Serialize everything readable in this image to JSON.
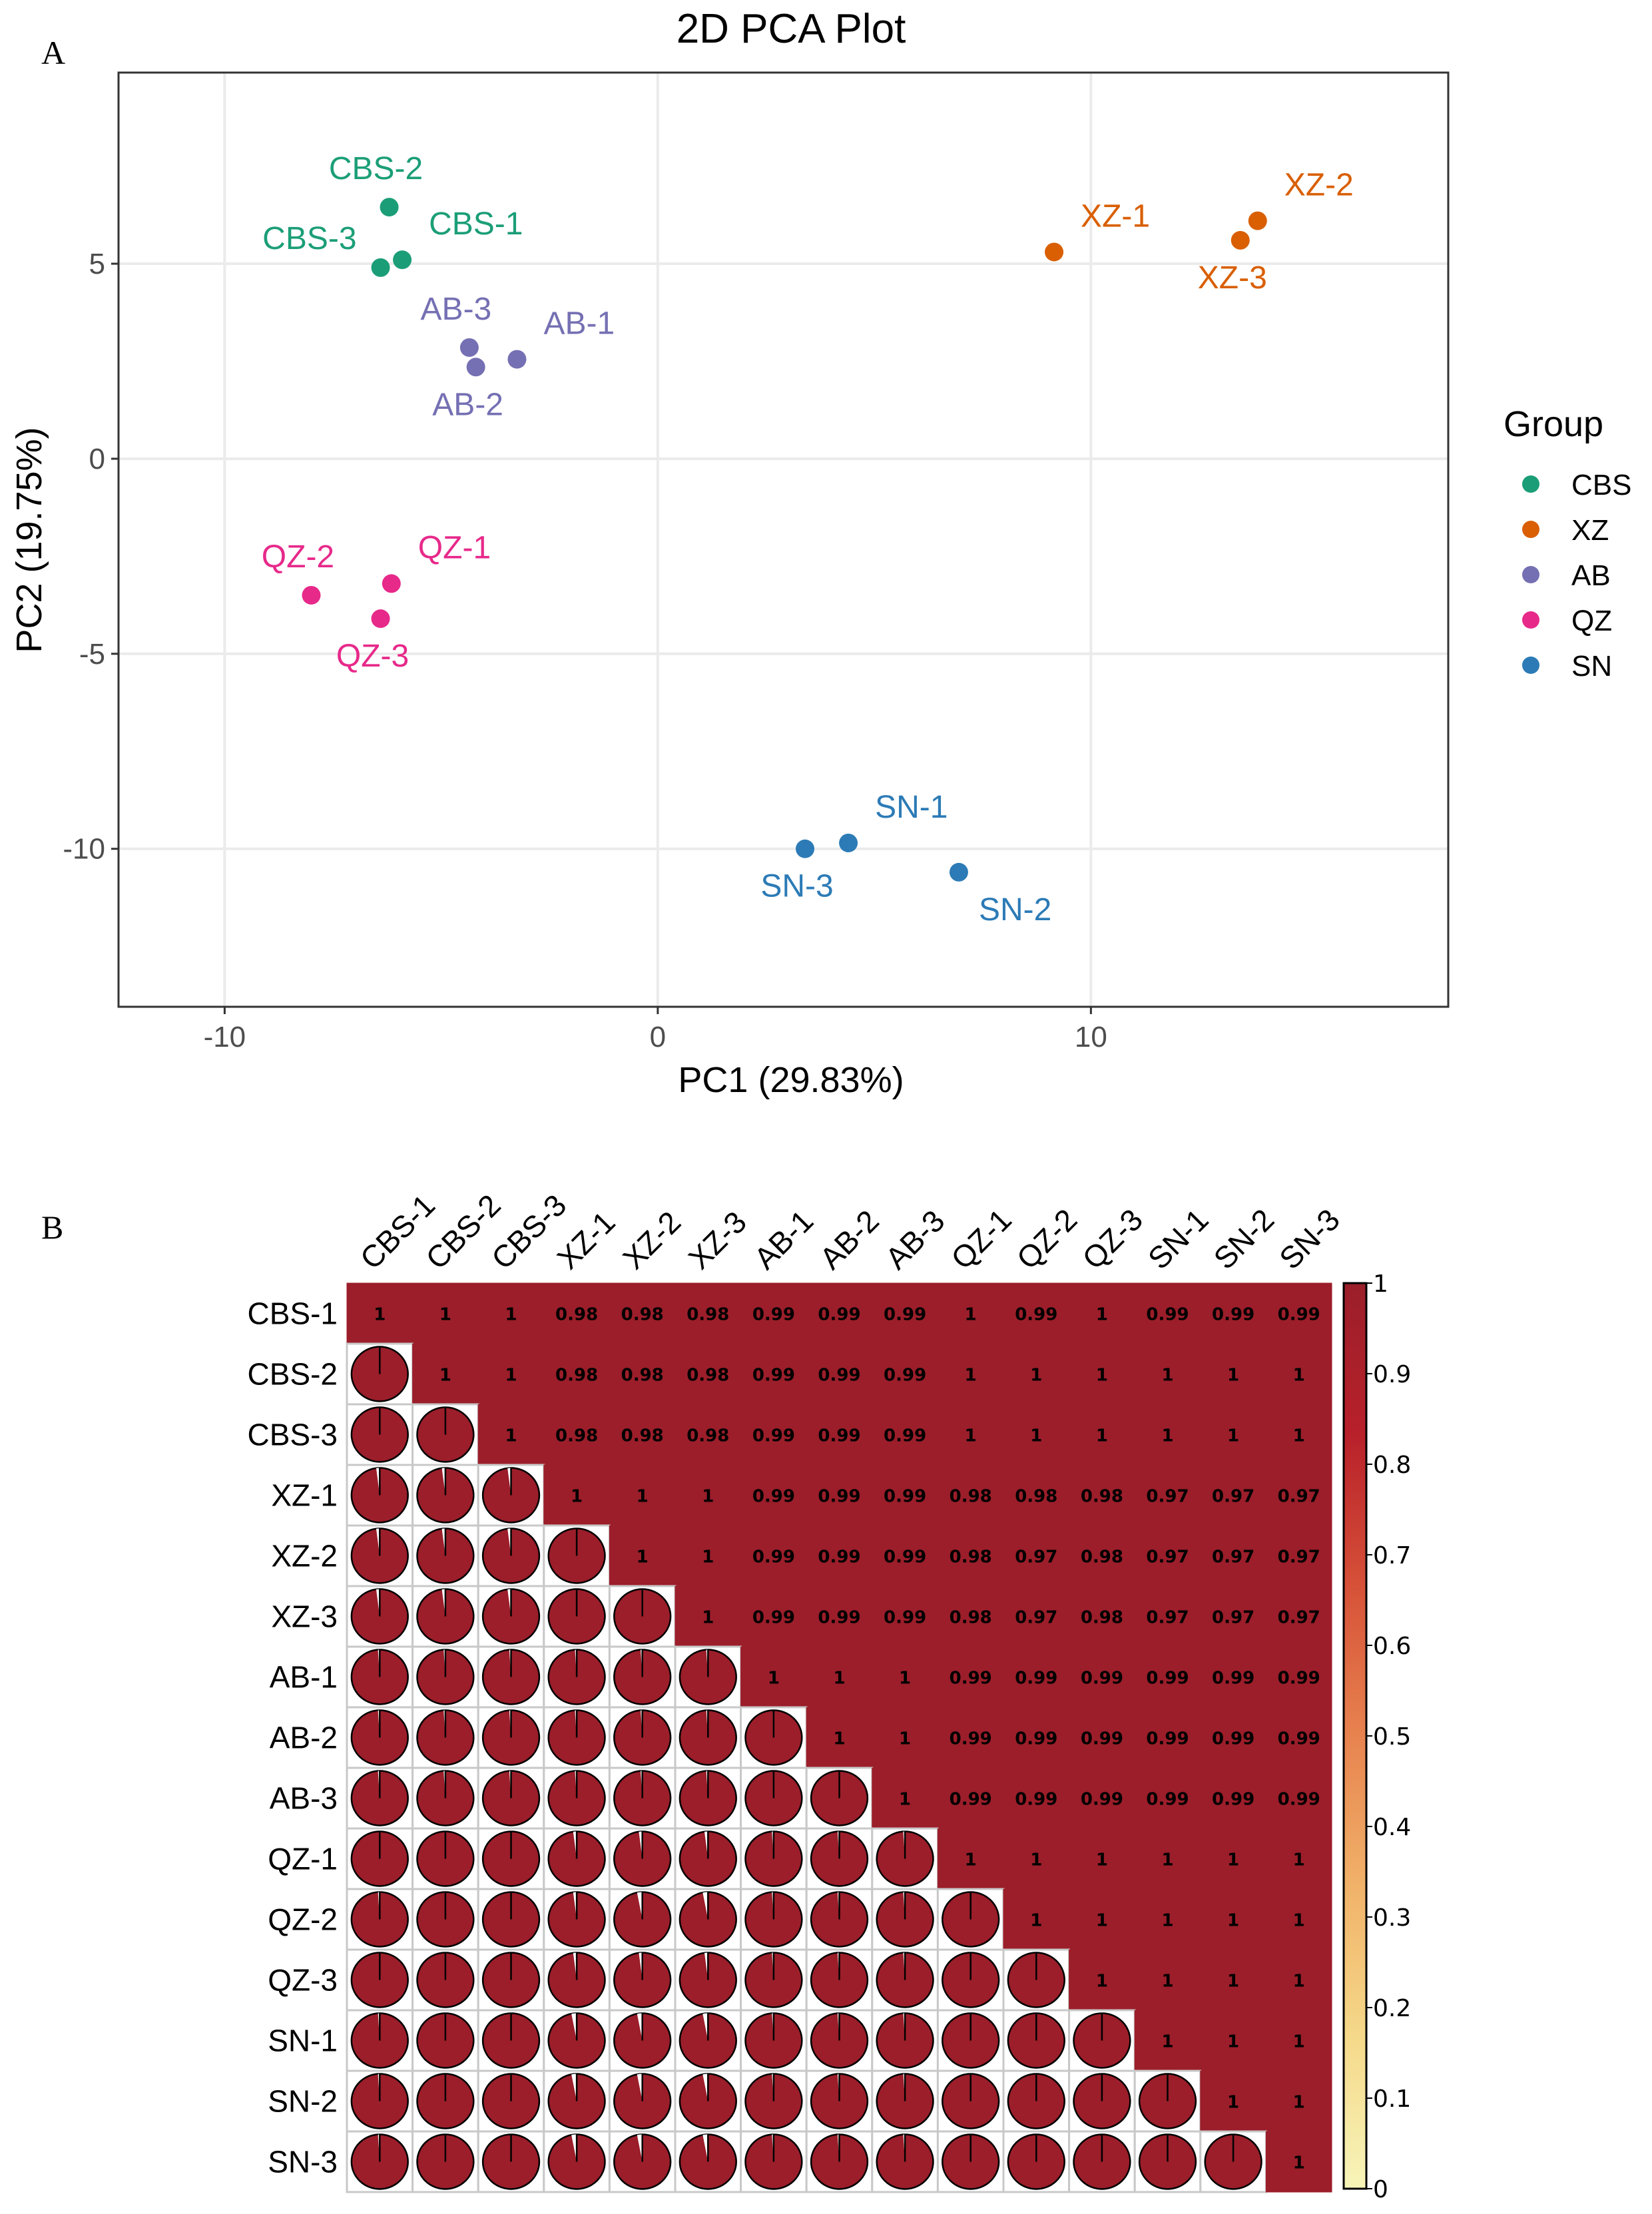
{
  "panels": {
    "a_letter": "A",
    "b_letter": "B"
  },
  "chart_data": [
    {
      "type": "scatter",
      "title": "2D PCA Plot",
      "xlabel": "PC1 (29.83%)",
      "ylabel": "PC2 (19.75%)",
      "xlim": [
        -12.45,
        18.25
      ],
      "ylim": [
        -14.05,
        9.9
      ],
      "xticks": [
        -10,
        0,
        10
      ],
      "yticks": [
        -10,
        -5,
        0,
        5
      ],
      "grid": true,
      "legend": {
        "title": "Group",
        "position": "right",
        "entries": [
          {
            "name": "CBS",
            "color": "#1b9e77"
          },
          {
            "name": "XZ",
            "color": "#d95f02"
          },
          {
            "name": "AB",
            "color": "#7570b3"
          },
          {
            "name": "QZ",
            "color": "#e7298a"
          },
          {
            "name": "SN",
            "color": "#2c7bb6"
          }
        ]
      },
      "points": [
        {
          "label": "CBS-1",
          "group": "CBS",
          "x": -5.9,
          "y": 5.1,
          "label_pos": "right-above"
        },
        {
          "label": "CBS-2",
          "group": "CBS",
          "x": -6.2,
          "y": 6.45,
          "label_pos": "above-left"
        },
        {
          "label": "CBS-3",
          "group": "CBS",
          "x": -6.4,
          "y": 4.9,
          "label_pos": "left-above"
        },
        {
          "label": "XZ-1",
          "group": "XZ",
          "x": 9.15,
          "y": 5.3,
          "label_pos": "right-above"
        },
        {
          "label": "XZ-2",
          "group": "XZ",
          "x": 13.85,
          "y": 6.1,
          "label_pos": "right-above"
        },
        {
          "label": "XZ-3",
          "group": "XZ",
          "x": 13.45,
          "y": 5.6,
          "label_pos": "below-left"
        },
        {
          "label": "AB-1",
          "group": "AB",
          "x": -3.25,
          "y": 2.55,
          "label_pos": "right-above"
        },
        {
          "label": "AB-2",
          "group": "AB",
          "x": -4.2,
          "y": 2.35,
          "label_pos": "below-left"
        },
        {
          "label": "AB-3",
          "group": "AB",
          "x": -4.35,
          "y": 2.85,
          "label_pos": "above-left"
        },
        {
          "label": "QZ-1",
          "group": "QZ",
          "x": -6.15,
          "y": -3.2,
          "label_pos": "right-above"
        },
        {
          "label": "QZ-2",
          "group": "QZ",
          "x": -8.0,
          "y": -3.5,
          "label_pos": "above-left"
        },
        {
          "label": "QZ-3",
          "group": "QZ",
          "x": -6.4,
          "y": -4.1,
          "label_pos": "below-left"
        },
        {
          "label": "SN-1",
          "group": "SN",
          "x": 4.4,
          "y": -9.85,
          "label_pos": "right-above"
        },
        {
          "label": "SN-2",
          "group": "SN",
          "x": 6.95,
          "y": -10.6,
          "label_pos": "below-right"
        },
        {
          "label": "SN-3",
          "group": "SN",
          "x": 3.4,
          "y": -10.0,
          "label_pos": "below-left"
        }
      ]
    },
    {
      "type": "heatmap",
      "subtype": "correlation-matrix (upper: numbers, lower: pie)",
      "labels": [
        "CBS-1",
        "CBS-2",
        "CBS-3",
        "XZ-1",
        "XZ-2",
        "XZ-3",
        "AB-1",
        "AB-2",
        "AB-3",
        "QZ-1",
        "QZ-2",
        "QZ-3",
        "SN-1",
        "SN-2",
        "SN-3"
      ],
      "matrix": [
        [
          1,
          1,
          1,
          0.98,
          0.98,
          0.98,
          0.99,
          0.99,
          0.99,
          1,
          0.99,
          1,
          0.99,
          0.99,
          0.99
        ],
        [
          1,
          1,
          1,
          0.98,
          0.98,
          0.98,
          0.99,
          0.99,
          0.99,
          1,
          1,
          1,
          1,
          1,
          1
        ],
        [
          1,
          1,
          1,
          0.98,
          0.98,
          0.98,
          0.99,
          0.99,
          0.99,
          1,
          1,
          1,
          1,
          1,
          1
        ],
        [
          0.98,
          0.98,
          0.98,
          1,
          1,
          1,
          0.99,
          0.99,
          0.99,
          0.98,
          0.98,
          0.98,
          0.97,
          0.97,
          0.97
        ],
        [
          0.98,
          0.98,
          0.98,
          1,
          1,
          1,
          0.99,
          0.99,
          0.99,
          0.98,
          0.97,
          0.98,
          0.97,
          0.97,
          0.97
        ],
        [
          0.98,
          0.98,
          0.98,
          1,
          1,
          1,
          0.99,
          0.99,
          0.99,
          0.98,
          0.97,
          0.98,
          0.97,
          0.97,
          0.97
        ],
        [
          0.99,
          0.99,
          0.99,
          0.99,
          0.99,
          0.99,
          1,
          1,
          1,
          0.99,
          0.99,
          0.99,
          0.99,
          0.99,
          0.99
        ],
        [
          0.99,
          0.99,
          0.99,
          0.99,
          0.99,
          0.99,
          1,
          1,
          1,
          0.99,
          0.99,
          0.99,
          0.99,
          0.99,
          0.99
        ],
        [
          0.99,
          0.99,
          0.99,
          0.99,
          0.99,
          0.99,
          1,
          1,
          1,
          0.99,
          0.99,
          0.99,
          0.99,
          0.99,
          0.99
        ],
        [
          1,
          1,
          1,
          0.98,
          0.98,
          0.98,
          0.99,
          0.99,
          0.99,
          1,
          1,
          1,
          1,
          1,
          1
        ],
        [
          0.99,
          1,
          1,
          0.98,
          0.97,
          0.97,
          0.99,
          0.99,
          0.99,
          1,
          1,
          1,
          1,
          1,
          1
        ],
        [
          1,
          1,
          1,
          0.98,
          0.98,
          0.98,
          0.99,
          0.99,
          0.99,
          1,
          1,
          1,
          1,
          1,
          1
        ],
        [
          0.99,
          1,
          1,
          0.97,
          0.97,
          0.97,
          0.99,
          0.99,
          0.99,
          1,
          1,
          1,
          1,
          1,
          1
        ],
        [
          0.99,
          1,
          1,
          0.97,
          0.97,
          0.97,
          0.99,
          0.99,
          0.99,
          1,
          1,
          1,
          1,
          1,
          1
        ],
        [
          0.99,
          1,
          1,
          0.97,
          0.97,
          0.97,
          0.99,
          0.99,
          0.99,
          1,
          1,
          1,
          1,
          1,
          1
        ]
      ],
      "colorbar": {
        "min": 0,
        "max": 1,
        "ticks": [
          "0",
          "0.1",
          "0.2",
          "0.3",
          "0.4",
          "0.5",
          "0.6",
          "0.7",
          "0.8",
          "0.9",
          "1"
        ],
        "colors": [
          "#f7f4b9",
          "#f5d98a",
          "#f1b26a",
          "#e7834f",
          "#d65138",
          "#b8202a",
          "#9a1f2a"
        ]
      },
      "cell_color": "#9b1e2a"
    }
  ]
}
